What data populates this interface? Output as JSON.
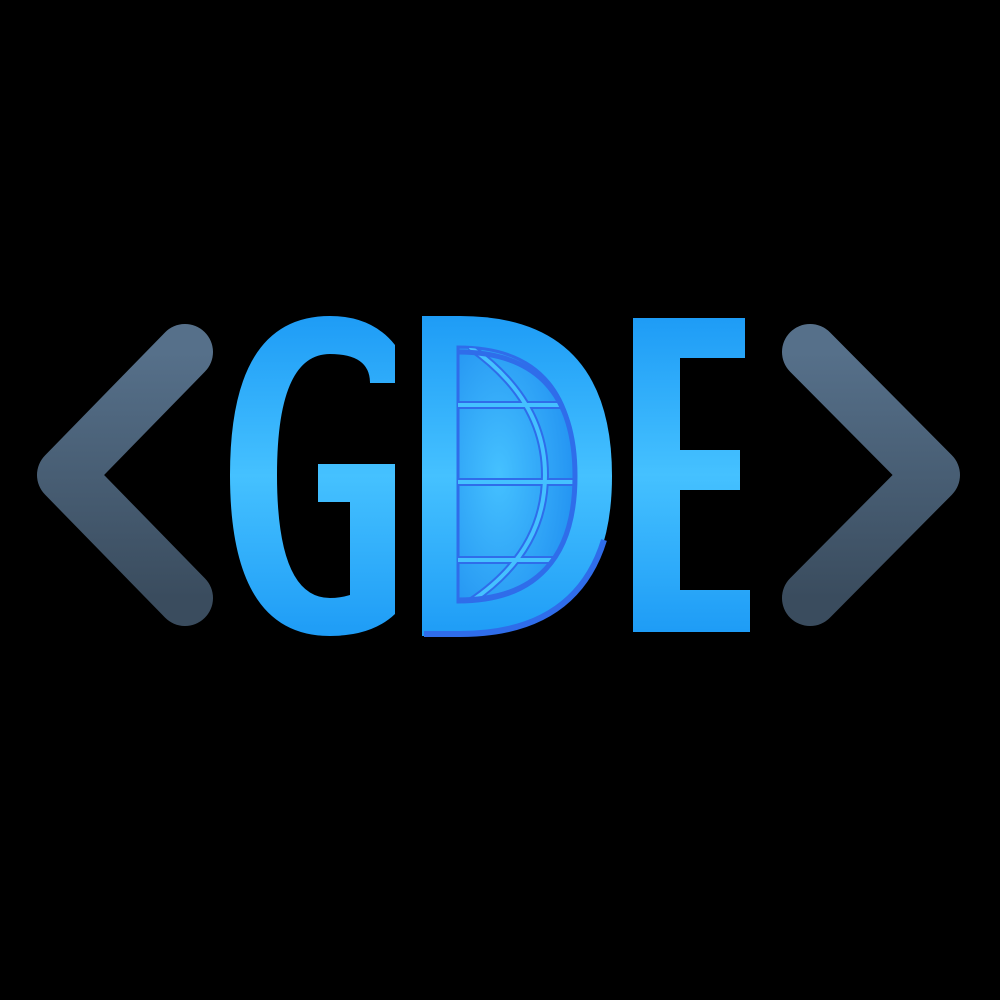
{
  "logo": {
    "wordmark": "GDE",
    "letters": [
      "G",
      "D",
      "E"
    ],
    "icons": {
      "left": "chevron-left-icon",
      "right": "chevron-right-icon",
      "globe": "globe-icon"
    },
    "colors": {
      "background": "#000000",
      "letter_light": "#45c1ff",
      "letter_dark": "#1e9cf6",
      "globe_edge": "#2f6dea",
      "chevron_top": "#56708a",
      "chevron_bottom": "#3a4c5e"
    }
  }
}
